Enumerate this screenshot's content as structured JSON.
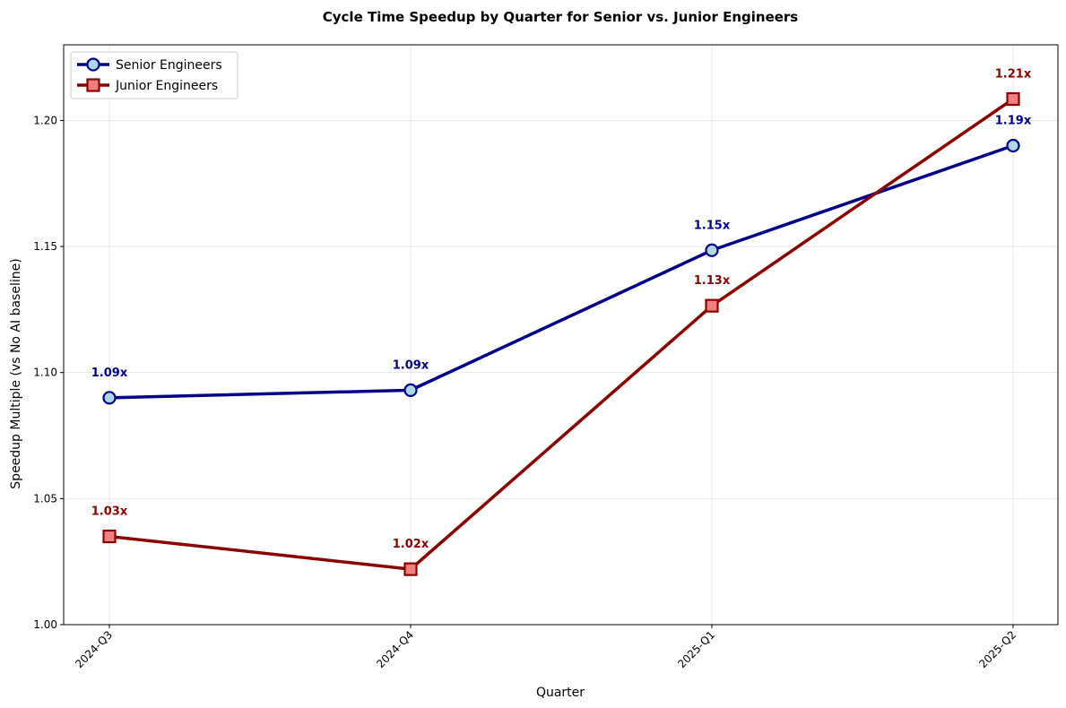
{
  "chart_data": {
    "type": "line",
    "title": "Cycle Time Speedup by Quarter for Senior vs. Junior Engineers",
    "xlabel": "Quarter",
    "ylabel": "Speedup Multiple (vs No AI baseline)",
    "categories": [
      "2024-Q3",
      "2024-Q4",
      "2025-Q1",
      "2025-Q2"
    ],
    "ylim": [
      1.0,
      1.23
    ],
    "yticks": [
      1.0,
      1.05,
      1.1,
      1.15,
      1.2
    ],
    "ytick_labels": [
      "1.00",
      "1.05",
      "1.10",
      "1.15",
      "1.20"
    ],
    "grid": true,
    "legend_position": "top-left",
    "series": [
      {
        "name": "Senior Engineers",
        "values": [
          1.09,
          1.093,
          1.1485,
          1.19
        ],
        "data_labels": [
          "1.09x",
          "1.09x",
          "1.15x",
          "1.19x"
        ],
        "line_color": "#00008b",
        "marker": "circle",
        "marker_fill": "#add8e6",
        "label_color": "#00008b"
      },
      {
        "name": "Junior Engineers",
        "values": [
          1.035,
          1.022,
          1.1265,
          1.2085
        ],
        "data_labels": [
          "1.03x",
          "1.02x",
          "1.13x",
          "1.21x"
        ],
        "line_color": "#8b0000",
        "marker": "square",
        "marker_fill": "#f08080",
        "label_color": "#8b0000"
      }
    ]
  }
}
